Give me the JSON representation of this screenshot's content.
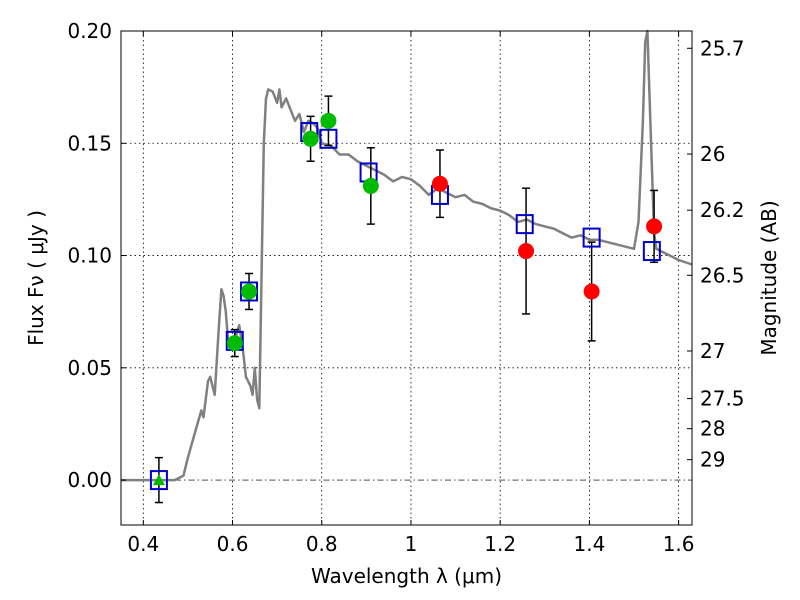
{
  "chart_data": {
    "type": "scatter",
    "xlabel": "Wavelength  λ (μm)",
    "ylabel": "Flux  Fν  ( μJy )",
    "ylabel2": "Magnitude (AB)",
    "xlim": [
      0.35,
      1.63
    ],
    "ylim": [
      -0.02,
      0.2
    ],
    "grid": true,
    "x_ticks": [
      0.4,
      0.6,
      0.8,
      1.0,
      1.2,
      1.4,
      1.6
    ],
    "x_tick_labels": [
      "0.4",
      "0.6",
      "0.8",
      "1",
      "1.2",
      "1.4",
      "1.6"
    ],
    "y_ticks": [
      0.0,
      0.05,
      0.1,
      0.15,
      0.2
    ],
    "y_tick_labels": [
      "0.00",
      "0.05",
      "0.10",
      "0.15",
      "0.20"
    ],
    "mag_ticks": [
      {
        "label": "25.7",
        "flux": 0.1923
      },
      {
        "label": "26",
        "flux": 0.1452
      },
      {
        "label": "26.2",
        "flux": 0.1202
      },
      {
        "label": "26.5",
        "flux": 0.0912
      },
      {
        "label": "27",
        "flux": 0.0575
      },
      {
        "label": "27.5",
        "flux": 0.0363
      },
      {
        "label": "28",
        "flux": 0.0229
      },
      {
        "label": "29",
        "flux": 0.0091
      }
    ],
    "series": [
      {
        "kind": "line",
        "color": "#808080",
        "x": [
          0.35,
          0.47,
          0.49,
          0.5,
          0.52,
          0.53,
          0.535,
          0.545,
          0.55,
          0.56,
          0.57,
          0.575,
          0.58,
          0.585,
          0.59,
          0.6,
          0.61,
          0.615,
          0.62,
          0.625,
          0.63,
          0.64,
          0.645,
          0.65,
          0.655,
          0.66,
          0.665,
          0.67,
          0.675,
          0.68,
          0.69,
          0.7,
          0.705,
          0.71,
          0.72,
          0.73,
          0.74,
          0.75,
          0.76,
          0.77,
          0.78,
          0.79,
          0.8,
          0.82,
          0.84,
          0.86,
          0.88,
          0.9,
          0.92,
          0.94,
          0.96,
          0.98,
          1.0,
          1.02,
          1.04,
          1.06,
          1.08,
          1.1,
          1.12,
          1.14,
          1.16,
          1.18,
          1.2,
          1.22,
          1.24,
          1.26,
          1.28,
          1.3,
          1.32,
          1.34,
          1.36,
          1.38,
          1.4,
          1.42,
          1.44,
          1.46,
          1.48,
          1.5,
          1.51,
          1.52,
          1.525,
          1.53,
          1.535,
          1.545,
          1.55,
          1.56,
          1.58,
          1.6,
          1.63
        ],
        "y": [
          0,
          0,
          0.002,
          0.01,
          0.024,
          0.031,
          0.028,
          0.044,
          0.046,
          0.038,
          0.07,
          0.085,
          0.082,
          0.075,
          0.062,
          0.058,
          0.066,
          0.069,
          0.063,
          0.055,
          0.046,
          0.042,
          0.038,
          0.05,
          0.036,
          0.032,
          0.09,
          0.15,
          0.17,
          0.174,
          0.173,
          0.168,
          0.174,
          0.166,
          0.17,
          0.165,
          0.16,
          0.163,
          0.155,
          0.16,
          0.159,
          0.157,
          0.15,
          0.149,
          0.145,
          0.145,
          0.142,
          0.14,
          0.138,
          0.136,
          0.133,
          0.135,
          0.134,
          0.131,
          0.127,
          0.13,
          0.128,
          0.126,
          0.127,
          0.124,
          0.123,
          0.121,
          0.12,
          0.118,
          0.115,
          0.116,
          0.114,
          0.113,
          0.112,
          0.11,
          0.108,
          0.109,
          0.107,
          0.107,
          0.106,
          0.105,
          0.104,
          0.103,
          0.115,
          0.16,
          0.195,
          0.2,
          0.17,
          0.11,
          0.103,
          0.102,
          0.1,
          0.098,
          0.096
        ]
      },
      {
        "kind": "square",
        "color": "#0000cc",
        "x": [
          0.435,
          0.605,
          0.637,
          0.772,
          0.815,
          0.905,
          1.065,
          1.255,
          1.405,
          1.54
        ],
        "y": [
          0.0,
          0.062,
          0.084,
          0.155,
          0.152,
          0.137,
          0.127,
          0.114,
          0.108,
          0.102
        ]
      },
      {
        "kind": "circle",
        "color": "#00bb00",
        "x": [
          0.605,
          0.637,
          0.775,
          0.815,
          0.91
        ],
        "y": [
          0.061,
          0.084,
          0.152,
          0.16,
          0.131
        ]
      },
      {
        "kind": "circle",
        "color": "#ff0000",
        "x": [
          1.065,
          1.258,
          1.405,
          1.545
        ],
        "y": [
          0.132,
          0.102,
          0.084,
          0.113
        ]
      },
      {
        "kind": "triangle",
        "color": "#00bb00",
        "x": [
          0.435
        ],
        "y": [
          0.0
        ]
      },
      {
        "kind": "errorbar",
        "color": "#000000",
        "x": [
          0.435,
          0.605,
          0.637,
          0.775,
          0.815,
          0.91,
          1.065,
          1.258,
          1.405,
          1.545
        ],
        "y": [
          0.0,
          0.061,
          0.084,
          0.152,
          0.16,
          0.131,
          0.132,
          0.102,
          0.084,
          0.113
        ],
        "yerr": [
          0.01,
          0.006,
          0.008,
          0.01,
          0.011,
          0.017,
          0.015,
          0.028,
          0.022,
          0.016
        ]
      }
    ]
  }
}
